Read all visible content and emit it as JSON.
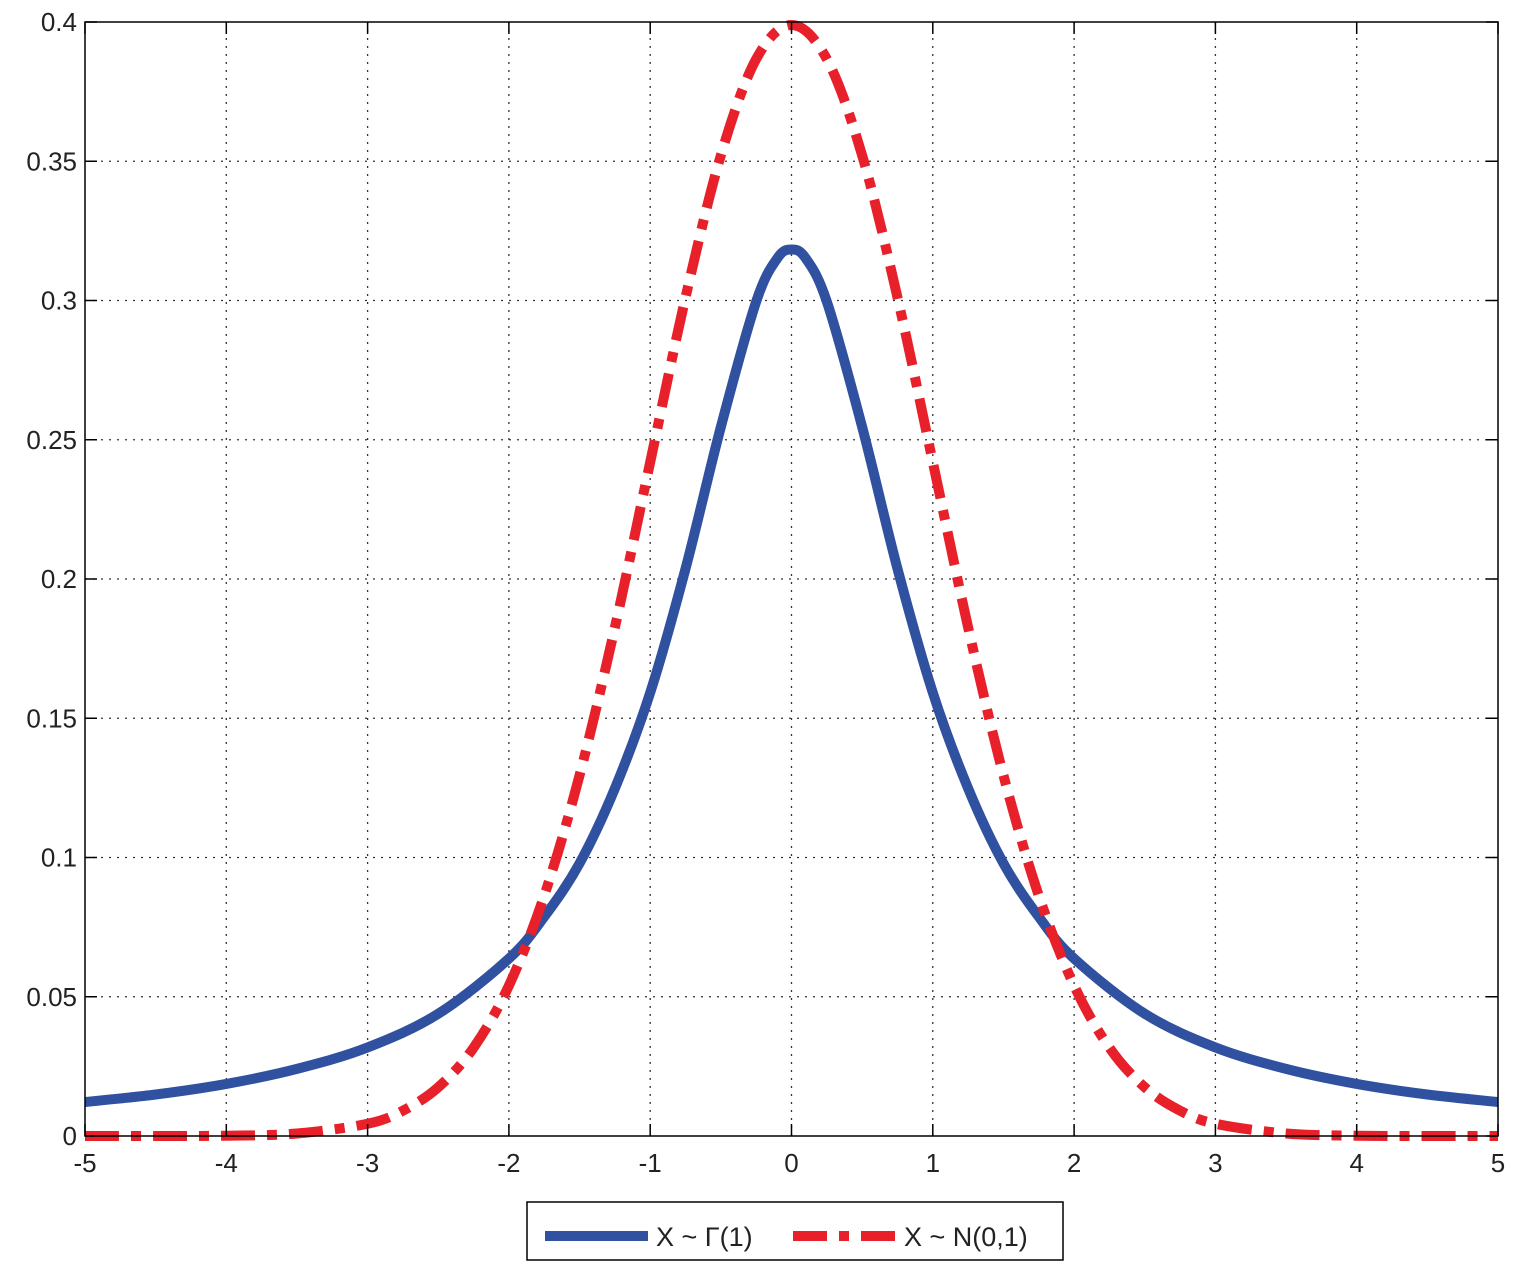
{
  "chart_data": {
    "type": "line",
    "title": "",
    "xlabel": "",
    "ylabel": "",
    "xlim": [
      -5,
      5
    ],
    "ylim": [
      0,
      0.4
    ],
    "grid": true,
    "x_ticks": [
      "-5",
      "-4",
      "-3",
      "-2",
      "-1",
      "0",
      "1",
      "2",
      "3",
      "4",
      "5"
    ],
    "y_ticks": [
      "0",
      "0.05",
      "0.1",
      "0.15",
      "0.2",
      "0.25",
      "0.3",
      "0.35",
      "0.4"
    ],
    "legend_position": "bottom-center",
    "series": [
      {
        "name": "X ~ Γ(1)",
        "color": "#3050a0",
        "style": "solid",
        "x": [
          -5,
          -4.5,
          -4,
          -3.5,
          -3,
          -2.5,
          -2,
          -1.75,
          -1.5,
          -1.25,
          -1,
          -0.75,
          -0.5,
          -0.25,
          -0.1,
          0,
          0.1,
          0.25,
          0.5,
          0.75,
          1,
          1.25,
          1.5,
          1.75,
          2,
          2.5,
          3,
          3.5,
          4,
          4.5,
          5
        ],
        "y": [
          0.0122,
          0.0149,
          0.0187,
          0.0241,
          0.0318,
          0.0439,
          0.0637,
          0.0787,
          0.0979,
          0.1248,
          0.1592,
          0.2037,
          0.2546,
          0.2996,
          0.3152,
          0.3183,
          0.3152,
          0.2996,
          0.2546,
          0.2037,
          0.1592,
          0.1248,
          0.0979,
          0.0787,
          0.0637,
          0.0439,
          0.0318,
          0.0241,
          0.0187,
          0.0149,
          0.0122
        ]
      },
      {
        "name": "X ~ N(0,1)",
        "color": "#e8202a",
        "style": "dash-dot",
        "x": [
          -5,
          -4.5,
          -4,
          -3.5,
          -3,
          -2.75,
          -2.5,
          -2.25,
          -2,
          -1.75,
          -1.5,
          -1.25,
          -1,
          -0.75,
          -0.5,
          -0.25,
          0,
          0.25,
          0.5,
          0.75,
          1,
          1.25,
          1.5,
          1.75,
          2,
          2.25,
          2.5,
          2.75,
          3,
          3.5,
          4,
          4.5,
          5
        ],
        "y": [
          0.0,
          0.0,
          0.0001,
          0.0009,
          0.0044,
          0.0091,
          0.0175,
          0.0317,
          0.054,
          0.0863,
          0.1295,
          0.1826,
          0.242,
          0.3011,
          0.3521,
          0.3867,
          0.3989,
          0.3867,
          0.3521,
          0.3011,
          0.242,
          0.1826,
          0.1295,
          0.0863,
          0.054,
          0.0317,
          0.0175,
          0.0091,
          0.0044,
          0.0009,
          0.0001,
          0.0,
          0.0
        ]
      }
    ]
  }
}
